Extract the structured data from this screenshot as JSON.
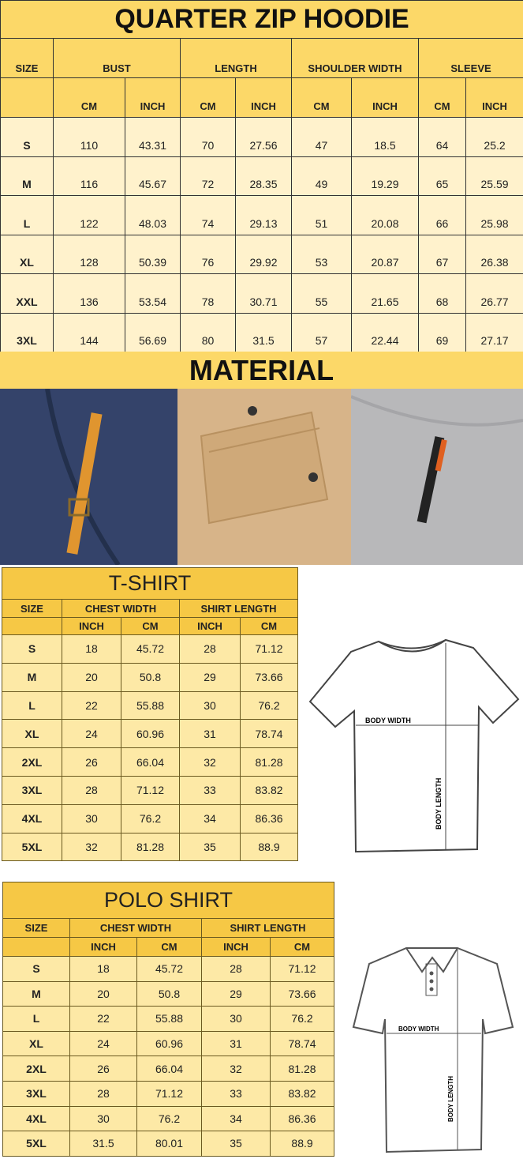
{
  "hoodie": {
    "title": "QUARTER ZIP HOODIE",
    "headers": [
      "SIZE",
      "BUST",
      "LENGTH",
      "SHOULDER WIDTH",
      "SLEEVE"
    ],
    "subheaders": [
      "CM",
      "INCH",
      "CM",
      "INCH",
      "CM",
      "INCH",
      "CM",
      "INCH"
    ],
    "rows": [
      [
        "S",
        "110",
        "43.31",
        "70",
        "27.56",
        "47",
        "18.5",
        "64",
        "25.2"
      ],
      [
        "M",
        "116",
        "45.67",
        "72",
        "28.35",
        "49",
        "19.29",
        "65",
        "25.59"
      ],
      [
        "L",
        "122",
        "48.03",
        "74",
        "29.13",
        "51",
        "20.08",
        "66",
        "25.98"
      ],
      [
        "XL",
        "128",
        "50.39",
        "76",
        "29.92",
        "53",
        "20.87",
        "67",
        "26.38"
      ],
      [
        "XXL",
        "136",
        "53.54",
        "78",
        "30.71",
        "55",
        "21.65",
        "68",
        "26.77"
      ],
      [
        "3XL",
        "144",
        "56.69",
        "80",
        "31.5",
        "57",
        "22.44",
        "69",
        "27.17"
      ]
    ]
  },
  "material": {
    "title": "MATERIAL",
    "photos": [
      {
        "color": "#2e3a5a",
        "accent": "#e0952f"
      },
      {
        "color": "#d7b489",
        "accent": "#3a3a3a"
      },
      {
        "color": "#b8b8ba",
        "accent": "#e06020"
      }
    ]
  },
  "tshirt": {
    "title": "T-SHIRT",
    "headers": [
      "SIZE",
      "CHEST WIDTH",
      "SHIRT LENGTH"
    ],
    "subheaders": [
      "INCH",
      "CM",
      "INCH",
      "CM"
    ],
    "rows": [
      [
        "S",
        "18",
        "45.72",
        "28",
        "71.12"
      ],
      [
        "M",
        "20",
        "50.8",
        "29",
        "73.66"
      ],
      [
        "L",
        "22",
        "55.88",
        "30",
        "76.2"
      ],
      [
        "XL",
        "24",
        "60.96",
        "31",
        "78.74"
      ],
      [
        "2XL",
        "26",
        "66.04",
        "32",
        "81.28"
      ],
      [
        "3XL",
        "28",
        "71.12",
        "33",
        "83.82"
      ],
      [
        "4XL",
        "30",
        "76.2",
        "34",
        "86.36"
      ],
      [
        "5XL",
        "32",
        "81.28",
        "35",
        "88.9"
      ]
    ],
    "diagram": {
      "width_label": "BODY WIDTH",
      "length_label": "BODY LENGTH"
    }
  },
  "polo": {
    "title": "POLO SHIRT",
    "headers": [
      "SIZE",
      "CHEST WIDTH",
      "SHIRT LENGTH"
    ],
    "subheaders": [
      "INCH",
      "CM",
      "INCH",
      "CM"
    ],
    "rows": [
      [
        "S",
        "18",
        "45.72",
        "28",
        "71.12"
      ],
      [
        "M",
        "20",
        "50.8",
        "29",
        "73.66"
      ],
      [
        "L",
        "22",
        "55.88",
        "30",
        "76.2"
      ],
      [
        "XL",
        "24",
        "60.96",
        "31",
        "78.74"
      ],
      [
        "2XL",
        "26",
        "66.04",
        "32",
        "81.28"
      ],
      [
        "3XL",
        "28",
        "71.12",
        "33",
        "83.82"
      ],
      [
        "4XL",
        "30",
        "76.2",
        "34",
        "86.36"
      ],
      [
        "5XL",
        "31.5",
        "80.01",
        "35",
        "88.9"
      ]
    ],
    "diagram": {
      "width_label": "BODY WIDTH",
      "length_label": "BODY LENGTH"
    }
  }
}
